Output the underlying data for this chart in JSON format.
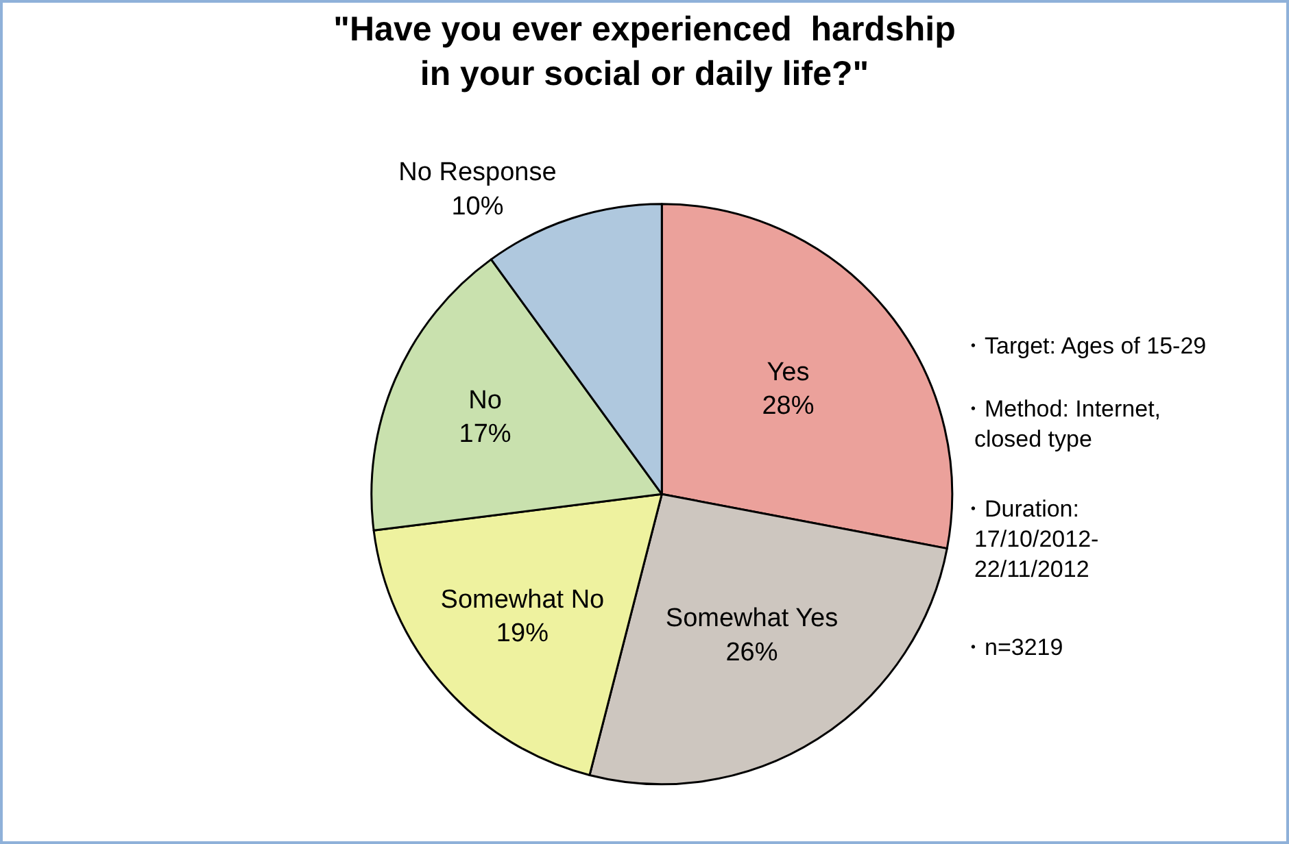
{
  "chart_data": {
    "type": "pie",
    "title": "\"Have you ever experienced  hardship\nin your social or daily life?\"",
    "categories": [
      "Yes",
      "Somewhat Yes",
      "Somewhat No",
      "No",
      "No Response"
    ],
    "values": [
      28,
      26,
      19,
      17,
      10
    ],
    "value_labels": [
      "28%",
      "26%",
      "19%",
      "17%",
      "10%"
    ],
    "colors": [
      "#eba19b",
      "#cdc6bf",
      "#eef29f",
      "#c9e1ae",
      "#afc8de"
    ],
    "legend": false,
    "annotations": [
      "・Target: Ages of 15-29",
      "・Method: Internet,\nclosed type",
      "・Duration:\n17/10/2012-\n22/11/2012",
      "・n=3219"
    ]
  }
}
